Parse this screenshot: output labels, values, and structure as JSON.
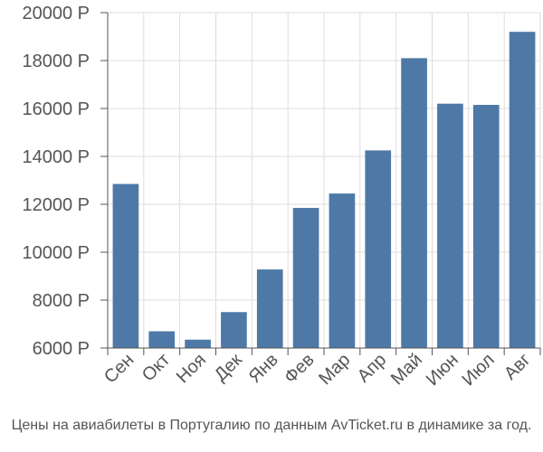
{
  "caption": "Цены на авиабилеты в Португалию по данным AvTicket.ru в динамике за год.",
  "colors": {
    "bar": "#4e79a7",
    "grid": "#dddddd",
    "axis": "#555555",
    "text": "#555555"
  },
  "chart_data": {
    "type": "bar",
    "categories": [
      "Сен",
      "Окт",
      "Ноя",
      "Дек",
      "Янв",
      "Фев",
      "Мар",
      "Апр",
      "Май",
      "Июн",
      "Июл",
      "Авг"
    ],
    "values": [
      12850,
      6700,
      6350,
      7500,
      9280,
      11850,
      12450,
      14250,
      18100,
      16200,
      16150,
      19200
    ],
    "ylim": [
      6000,
      20000
    ],
    "yticks": [
      6000,
      8000,
      10000,
      12000,
      14000,
      16000,
      18000,
      20000
    ],
    "ytick_labels": [
      "6000 Р",
      "8000 Р",
      "10000 Р",
      "12000 Р",
      "14000 Р",
      "16000 Р",
      "18000 Р",
      "20000 Р"
    ],
    "grid": true,
    "xlabel": "",
    "ylabel": "",
    "title": ""
  }
}
